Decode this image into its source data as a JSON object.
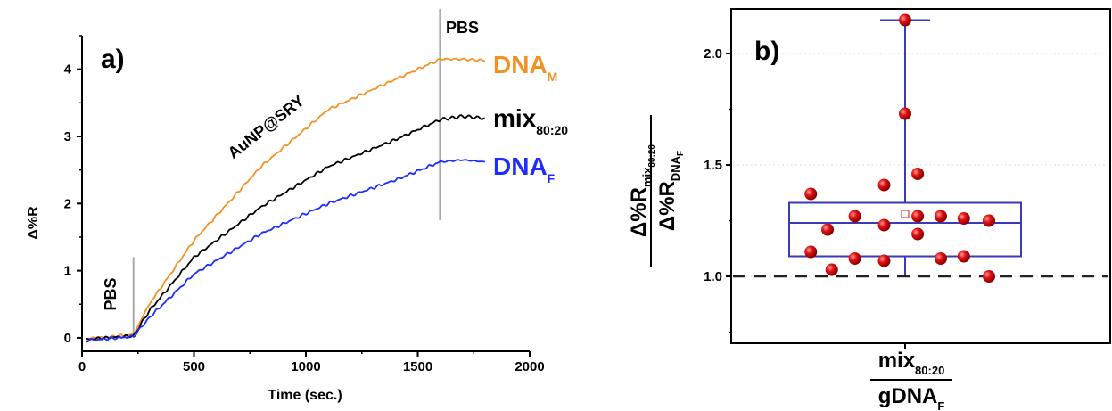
{
  "chart_data": [
    {
      "type": "line",
      "panel_label": "a)",
      "xlabel": "Time (sec.)",
      "ylabel": "Δ%R",
      "xlim": [
        0,
        2000
      ],
      "ylim": [
        -0.2,
        4.5
      ],
      "xticks": [
        "0",
        "500",
        "1000",
        "1500",
        "2000"
      ],
      "yticks": [
        "0",
        "1",
        "2",
        "3",
        "4"
      ],
      "annotations": {
        "pbs_start": "PBS",
        "pbs_start_x": 230,
        "pbs_end": "PBS",
        "pbs_end_x": 1600,
        "injection": "AuNP@SRY"
      },
      "series": [
        {
          "label_main": "DNA",
          "label_sub": "M",
          "color": "#f39224",
          "x": [
            20,
            230,
            300,
            500,
            800,
            1100,
            1400,
            1600,
            1700,
            1800
          ],
          "y": [
            -0.02,
            0.05,
            0.5,
            1.45,
            2.55,
            3.4,
            3.85,
            4.15,
            4.15,
            4.13
          ]
        },
        {
          "label_main": "mix",
          "label_sub": "80:20",
          "color": "#000000",
          "x": [
            20,
            230,
            300,
            500,
            800,
            1100,
            1400,
            1600,
            1700,
            1800
          ],
          "y": [
            -0.02,
            0.03,
            0.4,
            1.2,
            1.95,
            2.55,
            2.95,
            3.25,
            3.3,
            3.27
          ]
        },
        {
          "label_main": "DNA",
          "label_sub": "F",
          "color": "#1f2cff",
          "x": [
            20,
            230,
            300,
            500,
            800,
            1100,
            1400,
            1600,
            1700,
            1800
          ],
          "y": [
            -0.04,
            0.02,
            0.3,
            0.95,
            1.55,
            2.0,
            2.35,
            2.62,
            2.65,
            2.62
          ]
        }
      ]
    },
    {
      "type": "box",
      "panel_label": "b)",
      "ylim": [
        0.7,
        2.2
      ],
      "yticks": [
        "1.0",
        "1.5",
        "2.0"
      ],
      "reference_line": 1.0,
      "ylabel_num_main": "Δ%R",
      "ylabel_num_sub": "mix",
      "ylabel_num_subsub": "80:20",
      "ylabel_den_main": "Δ%R",
      "ylabel_den_sub": "DNA",
      "ylabel_den_subsub": "F",
      "category_num_main": "mix",
      "category_num_sub": "80:20",
      "category_den_main": "gDNA",
      "category_den_sub": "F",
      "box": {
        "q1": 1.09,
        "median": 1.24,
        "q3": 1.33,
        "mean": 1.28,
        "whisker_low": 1.0,
        "whisker_high": 2.15
      },
      "colors": {
        "box": "#3b3bb8",
        "points": "#e01010"
      },
      "points": [
        {
          "dx": -0.45,
          "y": 1.37
        },
        {
          "dx": -0.45,
          "y": 1.11
        },
        {
          "dx": -0.37,
          "y": 1.21
        },
        {
          "dx": -0.35,
          "y": 1.03
        },
        {
          "dx": -0.24,
          "y": 1.27
        },
        {
          "dx": -0.24,
          "y": 1.08
        },
        {
          "dx": -0.1,
          "y": 1.41
        },
        {
          "dx": -0.1,
          "y": 1.23
        },
        {
          "dx": -0.1,
          "y": 1.07
        },
        {
          "dx": 0.0,
          "y": 2.15
        },
        {
          "dx": 0.0,
          "y": 1.73
        },
        {
          "dx": 0.06,
          "y": 1.46
        },
        {
          "dx": 0.06,
          "y": 1.27
        },
        {
          "dx": 0.06,
          "y": 1.19
        },
        {
          "dx": 0.17,
          "y": 1.27
        },
        {
          "dx": 0.17,
          "y": 1.08
        },
        {
          "dx": 0.28,
          "y": 1.26
        },
        {
          "dx": 0.28,
          "y": 1.09
        },
        {
          "dx": 0.4,
          "y": 1.25
        },
        {
          "dx": 0.4,
          "y": 1.0
        }
      ]
    }
  ]
}
